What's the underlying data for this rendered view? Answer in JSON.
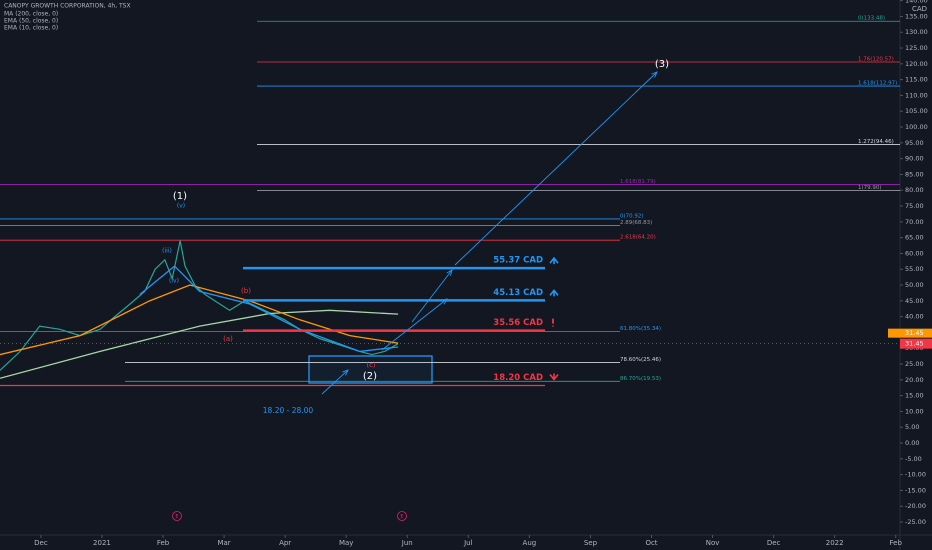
{
  "chart_data": {
    "type": "line",
    "title": "CANOPY GROWTH CORPORATION, 4h, TSX",
    "currency": "CAD",
    "xlim": [
      -0.67,
      14.07
    ],
    "ylim": [
      -29.1,
      140.2
    ],
    "xticks": [
      {
        "value": 0,
        "label": "Dec"
      },
      {
        "value": 1,
        "label": "2021"
      },
      {
        "value": 2,
        "label": "Feb"
      },
      {
        "value": 3,
        "label": "Mar"
      },
      {
        "value": 4,
        "label": "Apr"
      },
      {
        "value": 5,
        "label": "May"
      },
      {
        "value": 6,
        "label": "Jun"
      },
      {
        "value": 7,
        "label": "Jul"
      },
      {
        "value": 8,
        "label": "Aug"
      },
      {
        "value": 9,
        "label": "Sep"
      },
      {
        "value": 10,
        "label": "Oct"
      },
      {
        "value": 11,
        "label": "Nov"
      },
      {
        "value": 12,
        "label": "Dec"
      },
      {
        "value": 13,
        "label": "2022"
      },
      {
        "value": 14,
        "label": "Feb"
      }
    ],
    "yticks": [
      {
        "value": 140,
        "label": "140.00"
      },
      {
        "value": 135,
        "label": "135.00"
      },
      {
        "value": 130,
        "label": "130.00"
      },
      {
        "value": 125,
        "label": "125.00"
      },
      {
        "value": 120,
        "label": "120.00"
      },
      {
        "value": 115,
        "label": "115.00"
      },
      {
        "value": 110,
        "label": "110.00"
      },
      {
        "value": 105,
        "label": "105.00"
      },
      {
        "value": 100,
        "label": "100.00"
      },
      {
        "value": 95,
        "label": "95.00"
      },
      {
        "value": 90,
        "label": "90.00"
      },
      {
        "value": 85,
        "label": "85.00"
      },
      {
        "value": 80,
        "label": "80.00"
      },
      {
        "value": 75,
        "label": "75.00"
      },
      {
        "value": 70,
        "label": "70.00"
      },
      {
        "value": 65,
        "label": "65.00"
      },
      {
        "value": 60,
        "label": "60.00"
      },
      {
        "value": 55,
        "label": "55.00"
      },
      {
        "value": 50,
        "label": "50.00"
      },
      {
        "value": 45,
        "label": "45.00"
      },
      {
        "value": 40,
        "label": "40.00"
      },
      {
        "value": 35,
        "label": "35.00"
      },
      {
        "value": 30,
        "label": "30.00"
      },
      {
        "value": 25,
        "label": "25.00"
      },
      {
        "value": 20,
        "label": "20.00"
      },
      {
        "value": 15,
        "label": "15.00"
      },
      {
        "value": 10,
        "label": "10.00"
      },
      {
        "value": 5,
        "label": "5.00"
      },
      {
        "value": 0,
        "label": "0.00"
      },
      {
        "value": -5,
        "label": "-5.00"
      },
      {
        "value": -10,
        "label": "-10.00"
      },
      {
        "value": -15,
        "label": "-15.00"
      },
      {
        "value": -20,
        "label": "-20.00"
      },
      {
        "value": -25,
        "label": "-25.00"
      }
    ],
    "series": [
      {
        "color": "#26a69a",
        "x": [
          -0.67,
          -0.34,
          -0.02,
          0.31,
          0.64,
          0.97,
          1.21,
          1.46,
          1.7,
          1.87,
          2.03,
          2.15,
          2.28,
          2.36,
          2.52,
          2.69,
          2.85,
          3.09,
          3.34,
          3.66,
          3.99,
          4.24,
          4.57,
          4.9,
          5.22,
          5.42,
          5.63,
          5.85
        ],
        "values": [
          23,
          29,
          37,
          36,
          34,
          36,
          40,
          44,
          48,
          55,
          58,
          52,
          64,
          56,
          50,
          47,
          45,
          42,
          45,
          42,
          39,
          36,
          33,
          31,
          29,
          28,
          29,
          31.45
        ]
      },
      {
        "name": "MA (200, close, 0)",
        "color": "#a5d6a7",
        "x": [
          -0.67,
          0.97,
          2.6,
          3.75,
          4.73,
          5.85
        ],
        "values": [
          20.5,
          29,
          37,
          41,
          42,
          40.8
        ]
      },
      {
        "name": "EMA (50, close, 0)",
        "color": "#ff9800",
        "x": [
          -0.67,
          0.64,
          1.78,
          2.44,
          3.42,
          4.24,
          5.06,
          5.85
        ],
        "values": [
          28,
          34,
          45,
          50,
          45,
          39,
          34,
          31.6
        ]
      },
      {
        "name": "EMA (10, close, 0)",
        "color": "#2196f3",
        "x": [
          1.62,
          2.19,
          2.6,
          3.42,
          4.24,
          5.22,
          5.85
        ],
        "values": [
          47,
          56,
          48,
          44,
          36,
          29,
          30.4
        ]
      }
    ],
    "last_price": {
      "value": 31.45,
      "label": "31.45"
    },
    "fib_levels": [
      {
        "value": 133.48,
        "label": "0(133.48)",
        "color": "#26a69a"
      },
      {
        "value": 120.57,
        "label": "1.76(120.57)",
        "color": "#f23645"
      },
      {
        "value": 112.97,
        "label": "1.618(112.97)",
        "color": "#2196f3"
      },
      {
        "value": 94.46,
        "label": "1.272(94.46)",
        "color": "#d1d4dc"
      },
      {
        "value": 81.79,
        "label": "1.618(81.79)",
        "color": "#9c27b0"
      },
      {
        "value": 79.9,
        "label": "1(79.90)",
        "color": "#9598a1"
      },
      {
        "value": 70.92,
        "label": "0(70.92)",
        "color": "#2196f3"
      },
      {
        "value": 68.83,
        "label": "2.89(68.83)",
        "color": "#9598a1"
      },
      {
        "value": 64.2,
        "label": "2.618(64.20)",
        "color": "#f23645"
      },
      {
        "value": 35.34,
        "label": "61.80%(35.34)",
        "color": "#2196f3"
      },
      {
        "value": 25.46,
        "label": "78.60%(25.46)",
        "color": "#d1d4dc"
      },
      {
        "value": 19.53,
        "label": "86.70%(19.53)",
        "color": "#26a69a"
      }
    ],
    "targets": [
      {
        "value": 55.37,
        "label": "55.37 CAD",
        "color": "#2196f3"
      },
      {
        "value": 45.13,
        "label": "45.13 CAD",
        "color": "#2196f3"
      },
      {
        "value": 35.56,
        "label": "35.56 CAD",
        "color": "#f23645"
      },
      {
        "value": 18.2,
        "label": "18.20 CAD",
        "color": "#f23645"
      }
    ],
    "waves": [
      "(1)",
      "(v)",
      "(iii)",
      "(iv)",
      "(b)",
      "(a)",
      "(c)",
      "(2)",
      "(3)",
      "18.20 - 28.00"
    ],
    "events": [
      "E",
      "E"
    ]
  }
}
